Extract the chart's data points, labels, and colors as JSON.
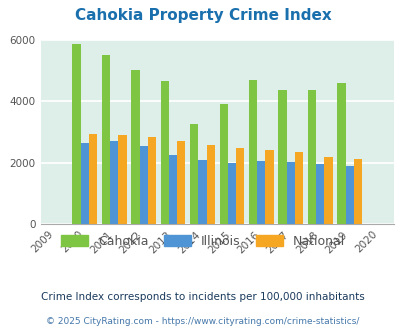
{
  "title": "Cahokia Property Crime Index",
  "years": [
    2009,
    2010,
    2011,
    2012,
    2013,
    2014,
    2015,
    2016,
    2017,
    2018,
    2019,
    2020
  ],
  "cahokia": [
    null,
    5850,
    5500,
    5000,
    4650,
    3250,
    3900,
    4700,
    4350,
    4350,
    4600,
    null
  ],
  "illinois": [
    null,
    2650,
    2700,
    2550,
    2250,
    2075,
    2000,
    2050,
    2020,
    1950,
    1900,
    null
  ],
  "national": [
    null,
    2950,
    2900,
    2850,
    2720,
    2580,
    2470,
    2420,
    2360,
    2200,
    2130,
    null
  ],
  "cahokia_color": "#7dc542",
  "illinois_color": "#4f94d4",
  "national_color": "#f5a623",
  "bg_color": "#deeee8",
  "ylim": [
    0,
    6000
  ],
  "yticks": [
    0,
    2000,
    4000,
    6000
  ],
  "legend_labels": [
    "Cahokia",
    "Illinois",
    "National"
  ],
  "footnote1": "Crime Index corresponds to incidents per 100,000 inhabitants",
  "footnote2": "© 2025 CityRating.com - https://www.cityrating.com/crime-statistics/",
  "title_color": "#1a6fad",
  "footnote1_color": "#1a3a5c",
  "footnote2_color": "#4477aa",
  "bar_width": 0.28,
  "grid_color": "#ffffff"
}
